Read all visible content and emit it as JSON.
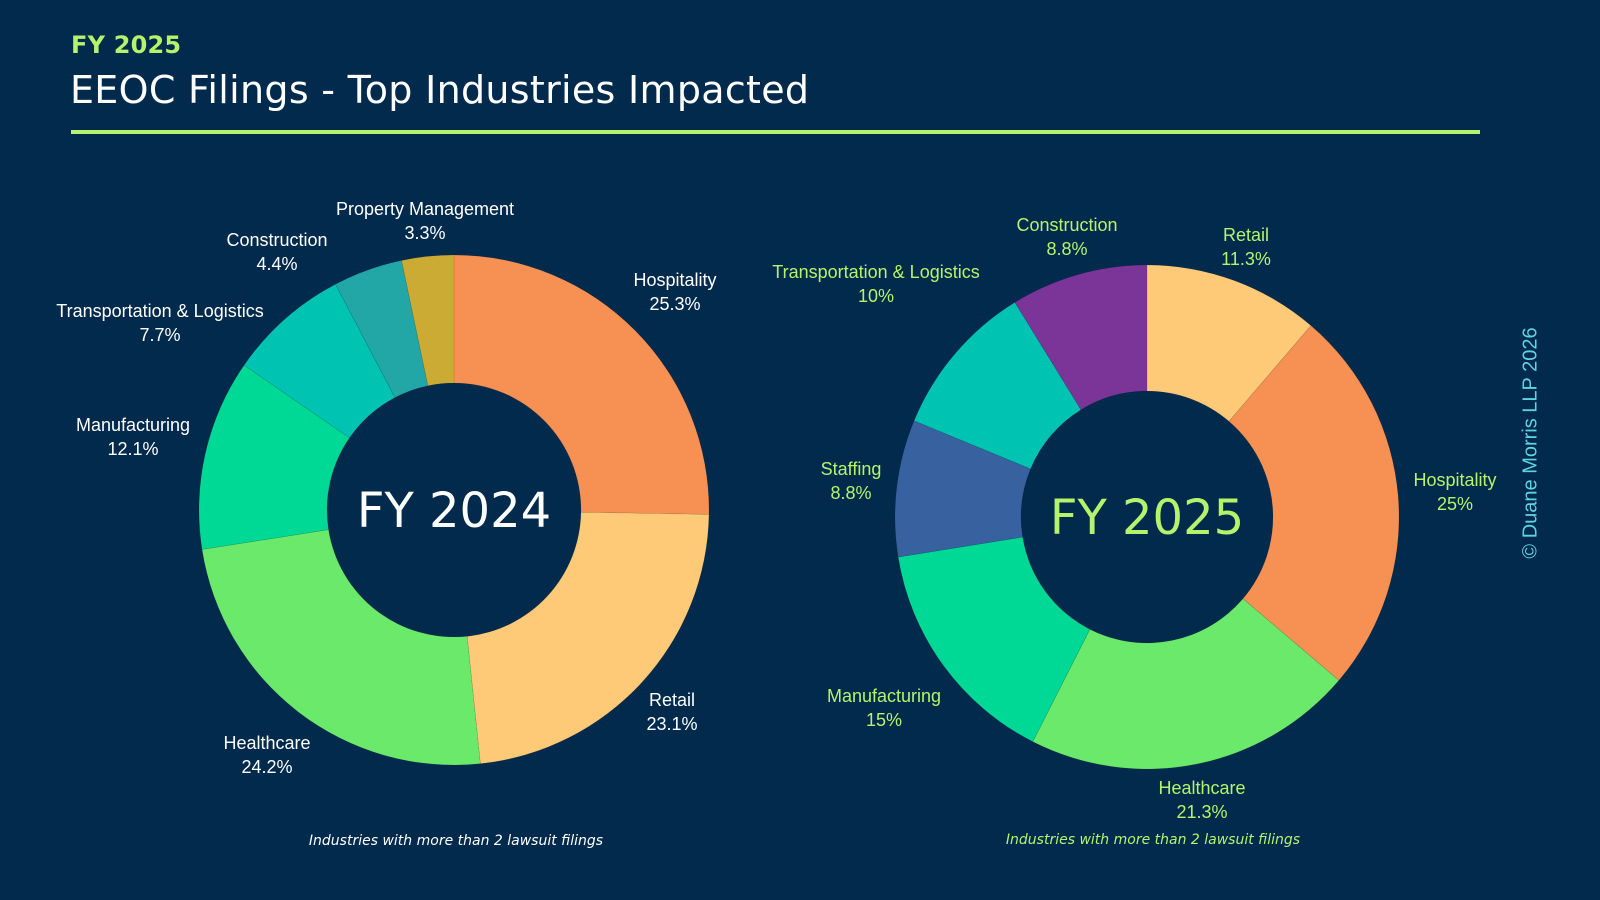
{
  "header": {
    "eyebrow": "FY 2025",
    "title": "EEOC Filings - Top Industries Impacted"
  },
  "colors": {
    "background": "#012a4d",
    "accent": "#b6f36c",
    "copyright": "#5cd5e0"
  },
  "copyright": "© Duane Morris LLP 2026",
  "chart_data": [
    {
      "type": "pie",
      "donut": true,
      "title": "FY 2024",
      "center_label": "FY 2024",
      "label_color": "#ffffff",
      "note": "Industries with more than 2 lawsuit filings",
      "start": "top",
      "direction": "clockwise",
      "slices": [
        {
          "label": "Hospitality",
          "value": 25.3,
          "display": "25.3%",
          "color": "#f79153"
        },
        {
          "label": "Retail",
          "value": 23.1,
          "display": "23.1%",
          "color": "#ffca77"
        },
        {
          "label": "Healthcare",
          "value": 24.2,
          "display": "24.2%",
          "color": "#6be96b"
        },
        {
          "label": "Manufacturing",
          "value": 12.1,
          "display": "12.1%",
          "color": "#00d895"
        },
        {
          "label": "Transportation & Logistics",
          "value": 7.7,
          "display": "7.7%",
          "color": "#00c3b2"
        },
        {
          "label": "Construction",
          "value": 4.4,
          "display": "4.4%",
          "color": "#22a6a6"
        },
        {
          "label": "Property Management",
          "value": 3.3,
          "display": "3.3%",
          "color": "#cbab34"
        }
      ]
    },
    {
      "type": "pie",
      "donut": true,
      "title": "FY 2025",
      "center_label": "FY 2025",
      "label_color": "#b6f36c",
      "note": "Industries with more than 2 lawsuit filings",
      "start": "top",
      "direction": "clockwise",
      "slices": [
        {
          "label": "Retail",
          "value": 11.3,
          "display": "11.3%",
          "color": "#ffca77"
        },
        {
          "label": "Hospitality",
          "value": 25,
          "display": "25%",
          "color": "#f79153"
        },
        {
          "label": "Healthcare",
          "value": 21.3,
          "display": "21.3%",
          "color": "#6be96b"
        },
        {
          "label": "Manufacturing",
          "value": 15,
          "display": "15%",
          "color": "#00d895"
        },
        {
          "label": "Staffing",
          "value": 8.8,
          "display": "8.8%",
          "color": "#3861a0"
        },
        {
          "label": "Transportation & Logistics",
          "value": 10,
          "display": "10%",
          "color": "#00c3b2"
        },
        {
          "label": "Construction",
          "value": 8.8,
          "display": "8.8%",
          "color": "#7b3598"
        }
      ]
    }
  ]
}
